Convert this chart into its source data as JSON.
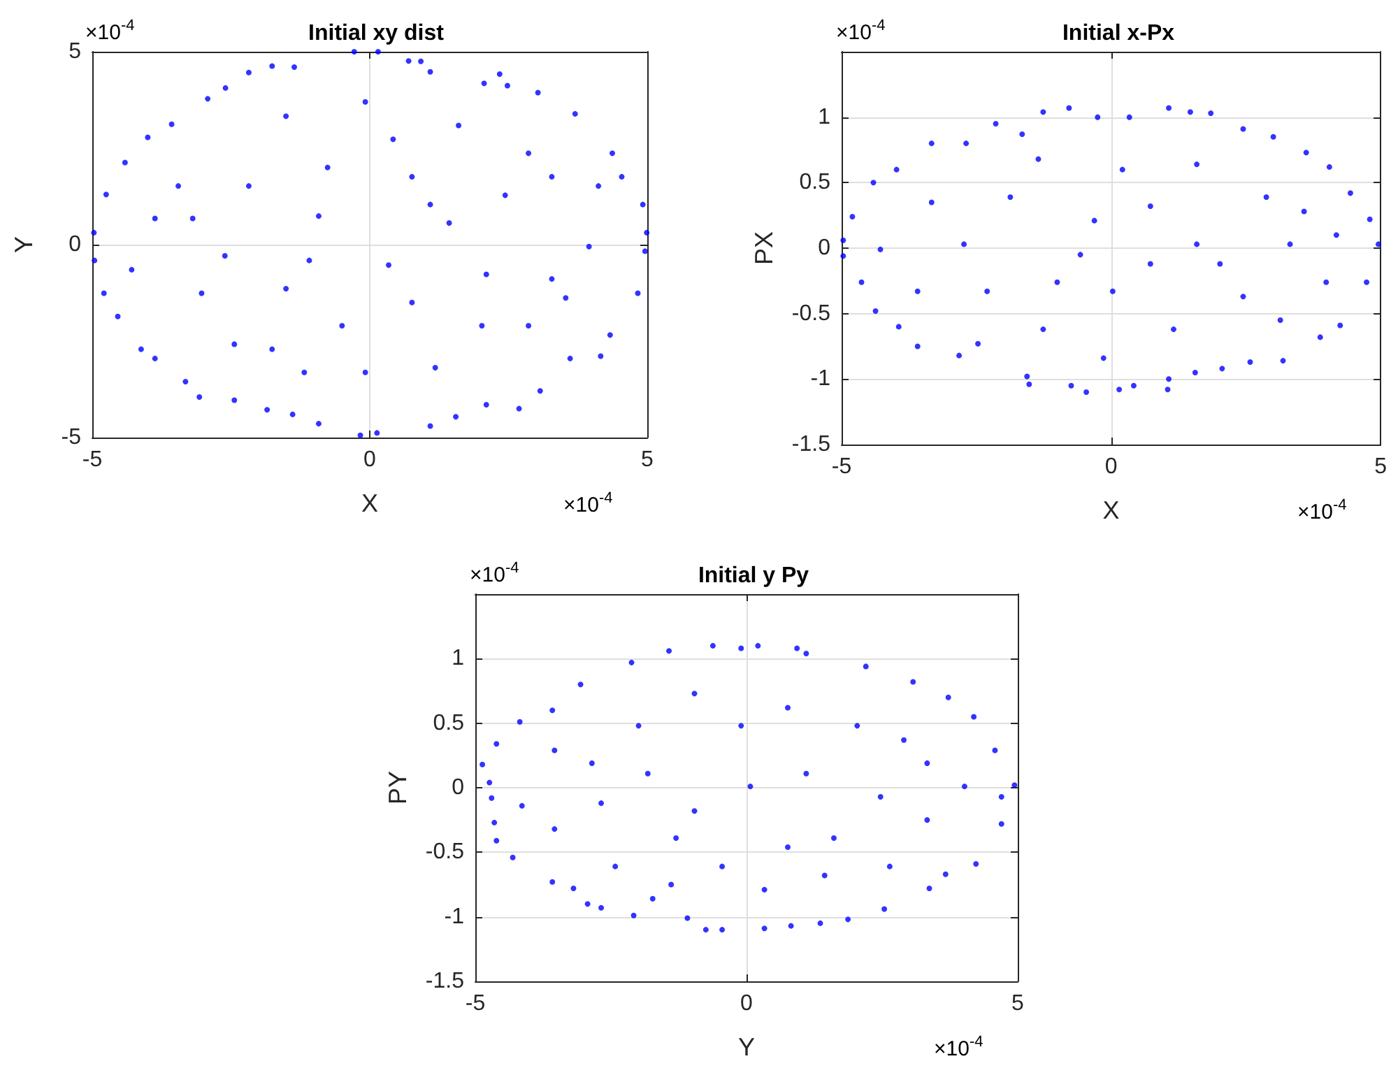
{
  "chart_data": [
    {
      "type": "scatter",
      "title": "Initial xy dist",
      "xlabel": "X",
      "ylabel": "Y",
      "annotations": [
        "×10$^{-4}$",
        "×10$^{-4}$"
      ],
      "xlim": [
        -5,
        5
      ],
      "ylim": [
        -5,
        5
      ],
      "xticks": [
        -5,
        0,
        5
      ],
      "yticks": [
        -5,
        0,
        5
      ],
      "grid": true,
      "marker": "circle",
      "series": [
        {
          "color": "#0000ff",
          "x": [
            -0.28,
            0.15,
            -2.18,
            -1.76,
            -1.36,
            0.7,
            0.92,
            2.34,
            2.06,
            -2.6,
            -2.92,
            -3.57,
            -4.0,
            -4.41,
            -4.75,
            -4.97,
            -4.96,
            -4.79,
            -4.54,
            -4.12,
            -3.87,
            -3.32,
            -3.07,
            -2.44,
            -1.85,
            -1.39,
            -0.92,
            -0.17,
            0.13,
            1.09,
            1.55,
            2.1,
            2.69,
            3.07,
            3.61,
            4.16,
            4.33,
            4.83,
            4.96,
            4.99,
            4.92,
            4.54,
            4.37,
            3.7,
            3.03,
            2.48,
            1.09,
            -0.92,
            -1.51,
            -2.61,
            -3.45,
            0.42,
            1.43,
            2.44,
            3.28,
            2.02,
            0.76,
            -0.5,
            -1.76,
            -3.03,
            -3.87,
            -0.76,
            -1.51,
            -0.08,
            1.6,
            2.86,
            4.12,
            3.95,
            2.86,
            1.18,
            -0.08,
            -1.18,
            -2.44,
            -4.29,
            -2.18,
            -1.09,
            0.34,
            1.09,
            2.1,
            3.53,
            3.28,
            0.76,
            -3.19
          ],
          "values": [
            5.0,
            5.0,
            4.46,
            4.63,
            4.6,
            4.76,
            4.75,
            4.42,
            4.18,
            4.06,
            3.78,
            3.12,
            2.78,
            2.13,
            1.3,
            0.31,
            -0.41,
            -1.26,
            -1.86,
            -2.71,
            -2.95,
            -3.55,
            -3.95,
            -4.03,
            -4.28,
            -4.4,
            -4.64,
            -4.94,
            -4.88,
            -4.7,
            -4.46,
            -4.15,
            -4.25,
            -3.79,
            -2.95,
            -2.89,
            -2.34,
            -1.26,
            -0.17,
            0.31,
            1.04,
            1.76,
            2.37,
            3.39,
            3.94,
            4.12,
            4.48,
            0.74,
            -1.14,
            -0.29,
            1.52,
            2.73,
            0.56,
            1.28,
            -0.89,
            -2.1,
            -1.5,
            -2.1,
            -2.71,
            -1.26,
            0.68,
            2.0,
            3.33,
            3.7,
            3.09,
            2.37,
            1.52,
            -0.05,
            -2.1,
            -3.19,
            -3.31,
            -3.31,
            -2.58,
            -0.65,
            1.52,
            -0.41,
            -0.53,
            1.04,
            -0.77,
            -1.38,
            1.76,
            1.76,
            0.68
          ]
        }
      ]
    },
    {
      "type": "scatter",
      "title": "Initial x-Px",
      "xlabel": "X",
      "ylabel": "PX",
      "annotations": [
        "×10$^{-4}$",
        "×10$^{-4}$"
      ],
      "xlim": [
        -5,
        5
      ],
      "ylim": [
        -1.5,
        1.5
      ],
      "xticks": [
        -5,
        0,
        5
      ],
      "yticks": [
        -1.5,
        -1,
        -0.5,
        0,
        0.5,
        1
      ],
      "grid": true,
      "marker": "circle",
      "series": [
        {
          "color": "#0000ff",
          "x": [
            -4.97,
            -4.97,
            -4.63,
            -4.37,
            -3.94,
            -3.59,
            -2.82,
            -2.47,
            -1.56,
            -1.52,
            -0.74,
            -0.46,
            0.15,
            0.42,
            1.05,
            1.07,
            1.56,
            2.06,
            2.58,
            3.19,
            3.88,
            4.25,
            4.74,
            4.96,
            4.8,
            4.44,
            4.05,
            3.62,
            3.01,
            2.45,
            1.85,
            1.47,
            1.07,
            0.34,
            -0.25,
            -0.78,
            -1.26,
            -1.65,
            -2.14,
            -2.69,
            -3.33,
            -3.98,
            -4.41,
            -4.8,
            -1.87,
            -1.0,
            -2.73,
            -3.59,
            -0.31,
            0.73,
            1.59,
            2.45,
            3.32,
            3.99,
            1.16,
            0.03,
            -1.26,
            -2.3,
            -3.33,
            -1.35,
            0.21,
            1.59,
            2.88,
            4.18,
            3.14,
            2.02,
            0.73,
            -0.57,
            -4.28,
            -0.14,
            3.58
          ],
          "values": [
            0.06,
            -0.06,
            -0.26,
            -0.48,
            -0.6,
            -0.75,
            -0.82,
            -0.73,
            -0.98,
            -1.04,
            -1.05,
            -1.1,
            -1.08,
            -1.05,
            -1.08,
            -1.0,
            -0.95,
            -0.92,
            -0.87,
            -0.86,
            -0.68,
            -0.59,
            -0.26,
            0.03,
            0.22,
            0.42,
            0.62,
            0.73,
            0.85,
            0.91,
            1.03,
            1.04,
            1.07,
            1.0,
            1.0,
            1.07,
            1.04,
            0.87,
            0.95,
            0.8,
            0.8,
            0.6,
            0.5,
            0.24,
            0.39,
            -0.26,
            0.03,
            -0.33,
            0.21,
            0.32,
            0.03,
            -0.37,
            0.03,
            -0.26,
            -0.62,
            -0.33,
            -0.62,
            -0.33,
            0.35,
            0.68,
            0.6,
            0.64,
            0.39,
            0.1,
            -0.55,
            -0.12,
            -0.12,
            -0.05,
            -0.01,
            -0.84,
            0.28
          ]
        }
      ]
    },
    {
      "type": "scatter",
      "title": "Initial y Py",
      "xlabel": "Y",
      "ylabel": "PY",
      "annotations": [
        "×10$^{-4}$",
        "×10$^{-4}$"
      ],
      "xlim": [
        -5,
        5
      ],
      "ylim": [
        -1.5,
        1.5
      ],
      "xticks": [
        -5,
        0,
        5
      ],
      "yticks": [
        -1.5,
        -1,
        -0.5,
        0,
        0.5,
        1
      ],
      "grid": true,
      "marker": "circle",
      "series": [
        {
          "color": "#0000ff",
          "x": [
            -4.87,
            -4.74,
            -4.7,
            -4.65,
            -4.61,
            -4.31,
            -3.58,
            -3.19,
            -2.93,
            -2.68,
            -2.08,
            -1.73,
            -1.09,
            -0.75,
            -0.45,
            0.33,
            0.82,
            1.36,
            1.87,
            2.54,
            3.37,
            3.67,
            4.23,
            4.7,
            4.94,
            4.7,
            4.58,
            4.19,
            3.72,
            3.07,
            2.2,
            1.1,
            0.93,
            0.21,
            -0.1,
            -0.62,
            -1.43,
            -2.12,
            -3.06,
            -3.58,
            -4.18,
            -4.61,
            -2.68,
            -3.54,
            -4.14,
            -1.82,
            -0.96,
            -0.45,
            0.76,
            1.61,
            2.47,
            3.33,
            4.02,
            2.9,
            2.04,
            0.76,
            -0.1,
            -0.96,
            -1.99,
            -2.85,
            -2.42,
            -1.39,
            0.33,
            1.44,
            2.64,
            0.07,
            1.1,
            -1.3,
            3.33,
            -3.54
          ],
          "values": [
            0.18,
            0.04,
            -0.08,
            -0.27,
            -0.41,
            -0.54,
            -0.73,
            -0.78,
            -0.9,
            -0.93,
            -0.99,
            -0.86,
            -1.01,
            -1.1,
            -1.1,
            -1.09,
            -1.07,
            -1.05,
            -1.02,
            -0.94,
            -0.78,
            -0.67,
            -0.59,
            -0.28,
            0.02,
            -0.07,
            0.29,
            0.55,
            0.7,
            0.82,
            0.94,
            1.04,
            1.08,
            1.1,
            1.08,
            1.1,
            1.06,
            0.97,
            0.8,
            0.6,
            0.51,
            0.34,
            -0.12,
            0.29,
            -0.14,
            0.11,
            -0.18,
            -0.61,
            -0.46,
            -0.39,
            -0.07,
            -0.25,
            0.01,
            0.37,
            0.48,
            0.62,
            0.48,
            0.73,
            0.48,
            0.19,
            -0.61,
            -0.75,
            -0.79,
            -0.68,
            -0.61,
            0.01,
            0.11,
            -0.39,
            0.19,
            -0.32
          ]
        }
      ]
    }
  ]
}
